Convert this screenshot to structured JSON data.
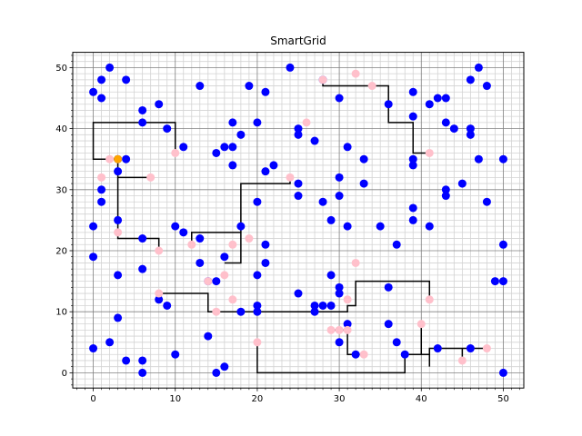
{
  "chart_data": {
    "type": "scatter",
    "title": "SmartGrid",
    "xlabel": "",
    "ylabel": "",
    "xlim": [
      -2.5,
      52.5
    ],
    "ylim": [
      -2.5,
      52.5
    ],
    "xticks": [
      0,
      10,
      20,
      30,
      40,
      50
    ],
    "yticks": [
      0,
      10,
      20,
      30,
      40,
      50
    ],
    "minor_step": 1,
    "grid": true,
    "colors": {
      "house": "#0000ff",
      "battery": "#ffc0cb",
      "battery_highlight": "#ffa500",
      "cable": "#000000",
      "major_grid": "#808080",
      "minor_grid": "#d3d3d3"
    },
    "houses": [
      [
        0,
        46
      ],
      [
        1,
        45
      ],
      [
        1,
        48
      ],
      [
        2,
        50
      ],
      [
        4,
        48
      ],
      [
        6,
        43
      ],
      [
        6,
        41
      ],
      [
        8,
        44
      ],
      [
        9,
        40
      ],
      [
        11,
        37
      ],
      [
        13,
        47
      ],
      [
        15,
        36
      ],
      [
        16,
        37
      ],
      [
        17,
        37
      ],
      [
        17,
        41
      ],
      [
        18,
        39
      ],
      [
        17,
        34
      ],
      [
        19,
        47
      ],
      [
        20,
        41
      ],
      [
        21,
        46
      ],
      [
        21,
        33
      ],
      [
        22,
        34
      ],
      [
        24,
        50
      ],
      [
        25,
        40
      ],
      [
        25,
        39
      ],
      [
        27,
        38
      ],
      [
        28,
        48
      ],
      [
        30,
        45
      ],
      [
        31,
        37
      ],
      [
        33,
        35
      ],
      [
        33,
        31
      ],
      [
        25,
        31
      ],
      [
        25,
        29
      ],
      [
        28,
        28
      ],
      [
        30,
        32
      ],
      [
        30,
        29
      ],
      [
        29,
        25
      ],
      [
        31,
        24
      ],
      [
        35,
        24
      ],
      [
        37,
        21
      ],
      [
        39,
        25
      ],
      [
        39,
        27
      ],
      [
        39,
        34
      ],
      [
        39,
        35
      ],
      [
        39,
        42
      ],
      [
        39,
        46
      ],
      [
        36,
        44
      ],
      [
        41,
        44
      ],
      [
        42,
        45
      ],
      [
        43,
        45
      ],
      [
        43,
        41
      ],
      [
        44,
        40
      ],
      [
        46,
        40
      ],
      [
        46,
        39
      ],
      [
        46,
        48
      ],
      [
        47,
        50
      ],
      [
        48,
        47
      ],
      [
        47,
        35
      ],
      [
        45,
        31
      ],
      [
        43,
        30
      ],
      [
        43,
        29
      ],
      [
        48,
        28
      ],
      [
        50,
        35
      ],
      [
        50,
        21
      ],
      [
        49,
        15
      ],
      [
        50,
        15
      ],
      [
        41,
        24
      ],
      [
        36,
        14
      ],
      [
        36,
        8
      ],
      [
        37,
        5
      ],
      [
        38,
        3
      ],
      [
        42,
        4
      ],
      [
        46,
        4
      ],
      [
        50,
        0
      ],
      [
        3,
        33
      ],
      [
        3,
        35
      ],
      [
        4,
        35
      ],
      [
        1,
        30
      ],
      [
        1,
        28
      ],
      [
        0,
        24
      ],
      [
        0,
        19
      ],
      [
        3,
        25
      ],
      [
        3,
        16
      ],
      [
        3,
        9
      ],
      [
        2,
        5
      ],
      [
        0,
        4
      ],
      [
        4,
        2
      ],
      [
        6,
        2
      ],
      [
        6,
        0
      ],
      [
        6,
        22
      ],
      [
        6,
        17
      ],
      [
        8,
        12
      ],
      [
        9,
        11
      ],
      [
        10,
        24
      ],
      [
        11,
        23
      ],
      [
        10,
        3
      ],
      [
        13,
        22
      ],
      [
        13,
        18
      ],
      [
        14,
        15
      ],
      [
        15,
        15
      ],
      [
        14,
        6
      ],
      [
        15,
        0
      ],
      [
        16,
        1
      ],
      [
        16,
        19
      ],
      [
        18,
        24
      ],
      [
        18,
        10
      ],
      [
        20,
        28
      ],
      [
        20,
        16
      ],
      [
        21,
        21
      ],
      [
        21,
        18
      ],
      [
        20,
        11
      ],
      [
        20,
        10
      ],
      [
        25,
        13
      ],
      [
        27,
        11
      ],
      [
        27,
        10
      ],
      [
        28,
        11
      ],
      [
        29,
        16
      ],
      [
        30,
        14
      ],
      [
        30,
        13
      ],
      [
        29,
        11
      ],
      [
        30,
        5
      ],
      [
        31,
        8
      ],
      [
        32,
        3
      ]
    ],
    "batteries": [
      [
        2,
        35
      ],
      [
        3,
        35
      ],
      [
        1,
        32
      ],
      [
        3,
        23
      ],
      [
        7,
        32
      ],
      [
        8,
        20
      ],
      [
        8,
        13
      ],
      [
        10,
        36
      ],
      [
        12,
        21
      ],
      [
        14,
        15
      ],
      [
        15,
        10
      ],
      [
        16,
        16
      ],
      [
        17,
        12
      ],
      [
        17,
        21
      ],
      [
        19,
        22
      ],
      [
        20,
        5
      ],
      [
        24,
        32
      ],
      [
        26,
        41
      ],
      [
        28,
        48
      ],
      [
        32,
        49
      ],
      [
        34,
        47
      ],
      [
        29,
        7
      ],
      [
        30,
        7
      ],
      [
        31,
        7
      ],
      [
        31,
        12
      ],
      [
        32,
        18
      ],
      [
        33,
        3
      ],
      [
        40,
        8
      ],
      [
        41,
        12
      ],
      [
        41,
        36
      ],
      [
        45,
        2
      ],
      [
        48,
        4
      ]
    ],
    "highlight_batteries": [
      [
        3,
        35
      ]
    ],
    "cables": [
      [
        [
          10,
          36
        ],
        [
          10,
          41
        ],
        [
          0,
          41
        ],
        [
          0,
          35
        ],
        [
          3,
          35
        ],
        [
          3,
          33
        ],
        [
          3,
          32
        ],
        [
          7,
          32
        ]
      ],
      [
        [
          3,
          32
        ],
        [
          3,
          22
        ],
        [
          8,
          22
        ],
        [
          8,
          20
        ]
      ],
      [
        [
          12,
          21
        ],
        [
          12,
          23
        ],
        [
          18,
          23
        ],
        [
          18,
          18
        ],
        [
          16,
          18
        ]
      ],
      [
        [
          18,
          23
        ],
        [
          18,
          31
        ],
        [
          24,
          31
        ],
        [
          24,
          32
        ]
      ],
      [
        [
          8,
          13
        ],
        [
          14,
          13
        ],
        [
          14,
          10
        ],
        [
          31,
          10
        ],
        [
          31,
          11
        ],
        [
          32,
          11
        ],
        [
          32,
          15
        ],
        [
          41,
          15
        ],
        [
          41,
          12
        ]
      ],
      [
        [
          28,
          48
        ],
        [
          28,
          47
        ],
        [
          36,
          47
        ],
        [
          36,
          41
        ],
        [
          39,
          41
        ],
        [
          39,
          36
        ],
        [
          41,
          36
        ]
      ],
      [
        [
          20,
          5
        ],
        [
          20,
          0
        ],
        [
          38,
          0
        ],
        [
          38,
          3
        ],
        [
          40,
          3
        ],
        [
          40,
          8
        ]
      ],
      [
        [
          29,
          7
        ],
        [
          31,
          7
        ],
        [
          31,
          3
        ],
        [
          33,
          3
        ]
      ],
      [
        [
          40,
          3
        ],
        [
          41,
          3
        ],
        [
          41,
          1
        ],
        [
          41,
          4
        ],
        [
          48,
          4
        ]
      ],
      [
        [
          45,
          2
        ],
        [
          45,
          4
        ]
      ]
    ]
  }
}
